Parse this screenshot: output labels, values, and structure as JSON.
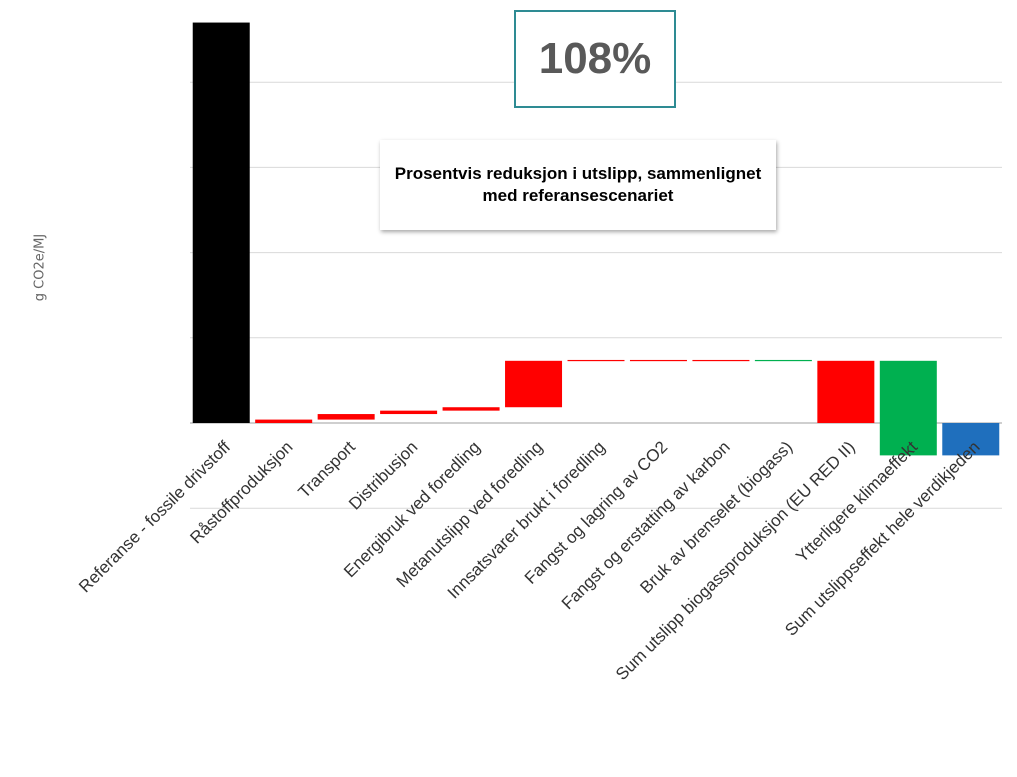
{
  "chart_data": {
    "type": "bar",
    "subtype": "waterfall",
    "ylabel": "g CO2e/MJ",
    "grid": true,
    "ylim": [
      -15,
      94
    ],
    "categories": [
      "Referanse - fossile drivstoff",
      "Råstoffproduksjon",
      "Transport",
      "Distribusjon",
      "Energibruk ved foredling",
      "Metanutslipp ved foredling",
      "Innsatsvarer brukt i foredling",
      "Fangst og lagring av CO2",
      "Fangst og erstatting av karbon",
      "Bruk av brenselet (biogass)",
      "Sum utslipp biogassproduksjon (EU RED II)",
      "Ytterligere klimaeffekt",
      "Sum utslippseffekt hele verdikjeden"
    ],
    "bars": [
      {
        "start": 0,
        "end": 94,
        "color": "#000000"
      },
      {
        "start": 0,
        "end": 0.8,
        "color": "#ff0000"
      },
      {
        "start": 0.8,
        "end": 2.1,
        "color": "#ff0000"
      },
      {
        "start": 2.1,
        "end": 2.9,
        "color": "#ff0000"
      },
      {
        "start": 2.9,
        "end": 3.7,
        "color": "#ff0000"
      },
      {
        "start": 3.7,
        "end": 14.6,
        "color": "#ff0000"
      },
      {
        "start": 14.6,
        "end": 14.8,
        "color": "#ff0000"
      },
      {
        "start": 14.8,
        "end": 14.8,
        "color": "#ff0000"
      },
      {
        "start": 14.8,
        "end": 14.8,
        "color": "#ff0000"
      },
      {
        "start": 14.8,
        "end": 14.6,
        "color": "#00b050"
      },
      {
        "start": 0,
        "end": 14.6,
        "color": "#ff0000"
      },
      {
        "start": 14.6,
        "end": -7.6,
        "color": "#00b050"
      },
      {
        "start": 0,
        "end": -7.6,
        "color": "#1f6fbd"
      }
    ],
    "gridlines": [
      -20,
      0,
      20,
      40,
      60,
      80
    ]
  },
  "annotations": {
    "percent_reduction": "108%",
    "note": "Prosentvis reduksjon i utslipp, sammenlignet med referansescenariet"
  }
}
